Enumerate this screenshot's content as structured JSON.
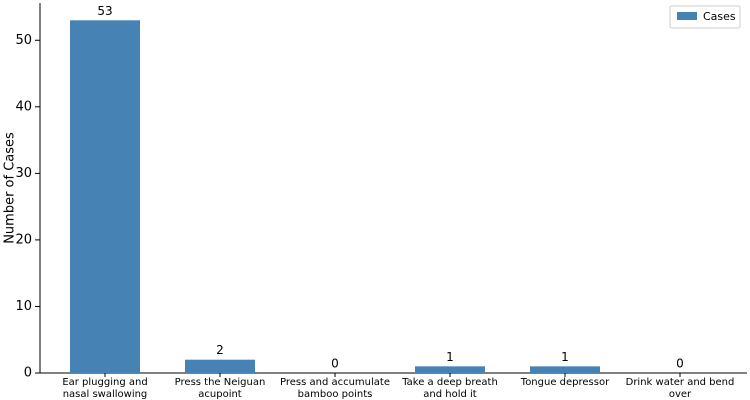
{
  "chart_data": {
    "type": "bar",
    "y_label": "Number of Cases",
    "categories": [
      "Ear plugging and nasal swallowing",
      "Press the Neiguan acupoint",
      "Press and accumulate bamboo points",
      "Take a deep breath and hold it",
      "Tongue depressor",
      "Drink water and bend over"
    ],
    "series": [
      {
        "name": "Cases",
        "color": "#4682b4",
        "values": [
          53,
          2,
          0,
          1,
          1,
          0
        ]
      }
    ],
    "ylim": [
      0,
      55.6
    ],
    "yticks": [
      0,
      10,
      20,
      30,
      40,
      50
    ],
    "grid": false,
    "legend": "upper right",
    "value_labels_shown": true
  }
}
